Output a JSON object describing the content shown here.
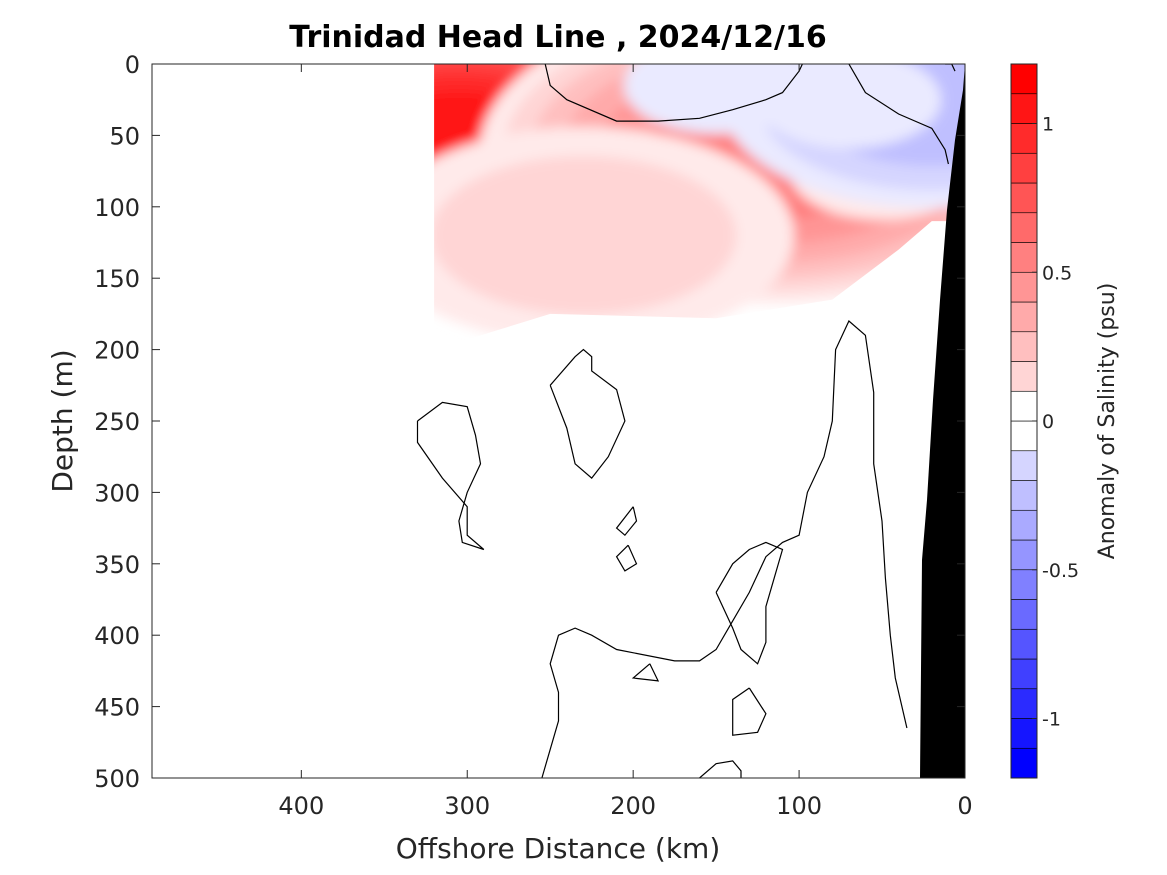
{
  "chart_data": {
    "type": "heatmap",
    "title": "Trinidad Head Line , 2024/12/16",
    "xlabel": "Offshore Distance (km)",
    "ylabel": "Depth (m)",
    "xlim": [
      490,
      0
    ],
    "ylim": [
      500,
      0
    ],
    "x_reversed": true,
    "y_reversed": true,
    "x_ticks": [
      400,
      300,
      200,
      100,
      0
    ],
    "x_tick_labels": [
      "400",
      "300",
      "200",
      "100",
      "0"
    ],
    "y_ticks": [
      0,
      50,
      100,
      150,
      200,
      250,
      300,
      350,
      400,
      450,
      500
    ],
    "y_tick_labels": [
      "0",
      "50",
      "100",
      "150",
      "200",
      "250",
      "300",
      "350",
      "400",
      "450",
      "500"
    ],
    "colorbar": {
      "label": "Anomaly of Salinity (psu)",
      "range": [
        -1.2,
        1.2
      ],
      "ticks": [
        1,
        0.5,
        0,
        -0.5,
        -1
      ],
      "tick_labels": [
        "1",
        "0.5",
        "0",
        "-0.5",
        "-1"
      ],
      "levels": [
        -1.2,
        -1.1,
        -1.0,
        -0.9,
        -0.8,
        -0.7,
        -0.6,
        -0.5,
        -0.4,
        -0.3,
        -0.2,
        -0.1,
        0,
        0.1,
        0.2,
        0.3,
        0.4,
        0.5,
        0.6,
        0.7,
        0.8,
        0.9,
        1.0,
        1.1,
        1.2
      ],
      "color_negative": "#0000ff",
      "color_positive": "#ff0000",
      "color_zero": "#ffffff"
    },
    "anomaly_features": [
      {
        "kind": "positive",
        "center_km": 305,
        "center_depth_m": 55,
        "peak": 1.1
      },
      {
        "kind": "positive",
        "center_km": 115,
        "center_depth_m": 62,
        "peak": 0.65
      },
      {
        "kind": "positive",
        "center_km": 230,
        "center_depth_m": 120,
        "peak": 0.25
      },
      {
        "kind": "positive",
        "center_km": 50,
        "center_depth_m": 75,
        "peak": 0.15
      },
      {
        "kind": "negative",
        "center_km": 20,
        "center_depth_m": 25,
        "peak": -0.3
      },
      {
        "kind": "negative",
        "center_km": 150,
        "center_depth_m": 15,
        "peak": -0.12
      },
      {
        "kind": "negative",
        "center_km": 70,
        "center_depth_m": 25,
        "peak": -0.12
      }
    ],
    "data_extent_km": [
      320,
      0
    ],
    "shelf_mask_color": "#000000"
  }
}
